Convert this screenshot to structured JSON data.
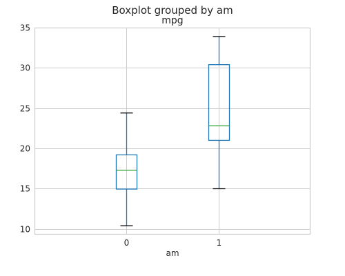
{
  "chart_data": {
    "type": "box",
    "suptitle": "Boxplot grouped by am",
    "title": "mpg",
    "xlabel": "am",
    "ylabel": "",
    "categories": [
      "0",
      "1"
    ],
    "boxes": [
      {
        "category": "0",
        "whislo": 10.4,
        "q1": 14.95,
        "median": 17.3,
        "q3": 19.2,
        "whishi": 24.4
      },
      {
        "category": "1",
        "whislo": 15.0,
        "q1": 21.0,
        "median": 22.8,
        "q3": 30.4,
        "whishi": 33.9
      }
    ],
    "ylim": [
      9.3,
      35.0
    ],
    "yticks": [
      10,
      15,
      20,
      25,
      30,
      35
    ],
    "grid": true,
    "colors": {
      "box": "#1f77b4",
      "median": "#2ca02c",
      "cap": "#000000",
      "grid": "#cccccc"
    }
  }
}
